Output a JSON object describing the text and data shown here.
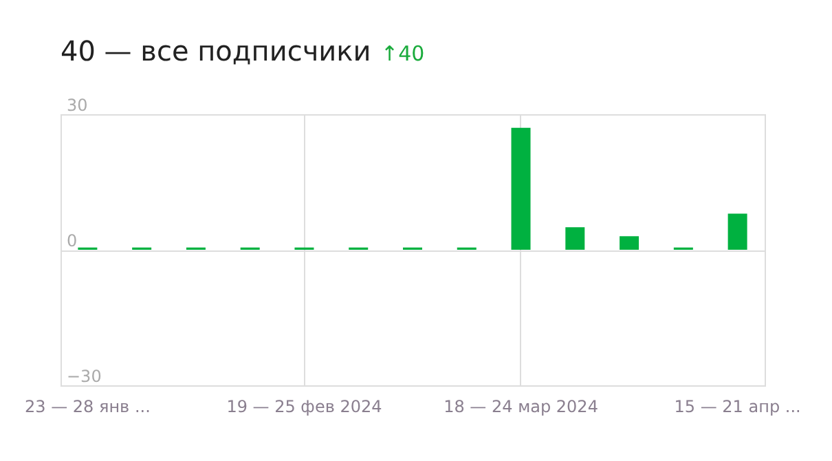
{
  "chart_data": {
    "type": "bar",
    "title": "40 — все подписчики",
    "annotations": [
      "↑40"
    ],
    "categories": [
      "23 — 28 янв ...",
      null,
      null,
      null,
      "19 — 25 фев 2024",
      null,
      null,
      null,
      "18 — 24 мар 2024",
      null,
      null,
      null,
      "15 — 21 апр ..."
    ],
    "values": [
      0.5,
      0.5,
      0.5,
      0.5,
      0.5,
      0.5,
      0.5,
      0.5,
      27,
      5,
      3,
      0.5,
      8
    ],
    "color": "#00b140",
    "ylim": [
      -30,
      30
    ],
    "yticks": [
      -30,
      0,
      30
    ],
    "grid": true
  }
}
